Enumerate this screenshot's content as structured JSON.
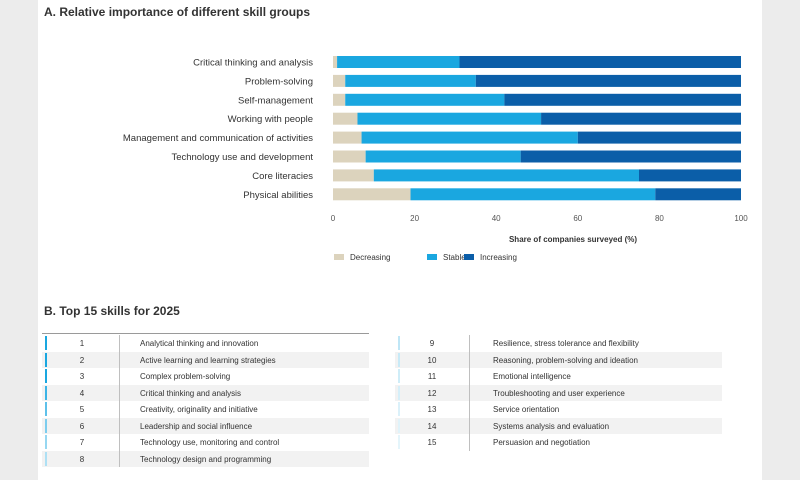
{
  "section_a_title": "A. Relative importance of different skill groups",
  "section_b_title": "B. Top 15 skills for 2025",
  "colors": {
    "decreasing": "#dcd3bd",
    "stable": "#1aa7e0",
    "increasing": "#0b5ea8"
  },
  "chart_data": {
    "type": "bar",
    "orientation": "horizontal",
    "stacked": true,
    "categories": [
      "Critical thinking and analysis",
      "Problem-solving",
      "Self-management",
      "Working with people",
      "Management and communication of activities",
      "Technology use and development",
      "Core literacies",
      "Physical abilities"
    ],
    "series": [
      {
        "name": "Decreasing",
        "values": [
          1,
          3,
          3,
          6,
          7,
          8,
          10,
          19
        ]
      },
      {
        "name": "Stable",
        "values": [
          30,
          32,
          39,
          45,
          53,
          38,
          65,
          60
        ]
      },
      {
        "name": "Increasing",
        "values": [
          69,
          65,
          58,
          49,
          40,
          54,
          25,
          21
        ]
      }
    ],
    "xlabel": "Share of companies surveyed (%)",
    "xlim": [
      0,
      100
    ],
    "xticks": [
      "0",
      "20",
      "40",
      "60",
      "80",
      "100"
    ],
    "grid": false,
    "legend": "bottom"
  },
  "skills": {
    "left": [
      {
        "rank": "1",
        "skill": "Analytical thinking and innovation",
        "accent": "#1aa7e0"
      },
      {
        "rank": "2",
        "skill": "Active learning and learning strategies",
        "accent": "#1aa7e0"
      },
      {
        "rank": "3",
        "skill": "Complex problem-solving",
        "accent": "#1aa7e0"
      },
      {
        "rank": "4",
        "skill": "Critical thinking and analysis",
        "accent": "#3bb4e6"
      },
      {
        "rank": "5",
        "skill": "Creativity, originality and initiative",
        "accent": "#5ec1ea"
      },
      {
        "rank": "6",
        "skill": "Leadership and social influence",
        "accent": "#7ccdee"
      },
      {
        "rank": "7",
        "skill": "Technology use, monitoring and control",
        "accent": "#96d7f1"
      },
      {
        "rank": "8",
        "skill": "Technology design and programming",
        "accent": "#aee0f4"
      }
    ],
    "right": [
      {
        "rank": "9",
        "skill": "Resilience, stress tolerance and flexibility",
        "accent": "#bfe6f6"
      },
      {
        "rank": "10",
        "skill": "Reasoning, problem-solving and ideation",
        "accent": "#c8eaf7"
      },
      {
        "rank": "11",
        "skill": "Emotional intelligence",
        "accent": "#cfedf8"
      },
      {
        "rank": "12",
        "skill": "Troubleshooting and user experience",
        "accent": "#d5eff9"
      },
      {
        "rank": "13",
        "skill": "Service orientation",
        "accent": "#dbf1fa"
      },
      {
        "rank": "14",
        "skill": "Systems analysis and evaluation",
        "accent": "#e0f3fa"
      },
      {
        "rank": "15",
        "skill": "Persuasion and negotiation",
        "accent": "#e4f5fb"
      }
    ]
  }
}
